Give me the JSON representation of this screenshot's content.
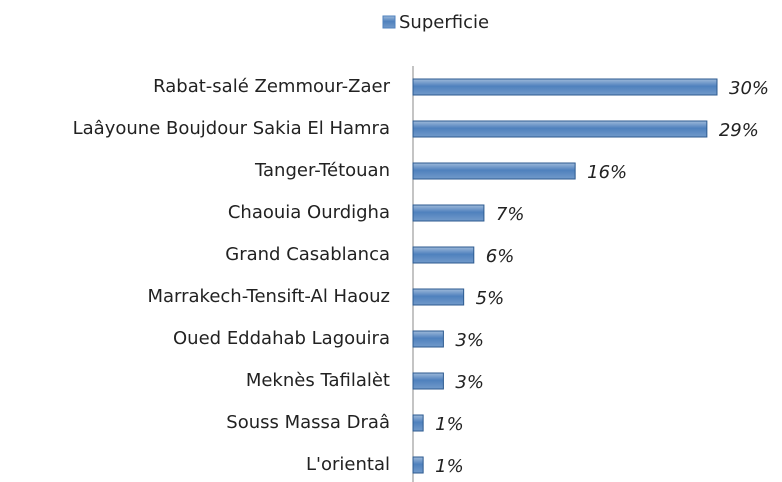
{
  "chart_data": {
    "type": "bar",
    "orientation": "horizontal",
    "categories": [
      "Rabat-salé Zemmour-Zaer",
      "Laâyoune Boujdour Sakia El Hamra",
      "Tanger-Tétouan",
      "Chaouia Ourdigha",
      "Grand Casablanca",
      "Marrakech-Tensift-Al Haouz",
      "Oued Eddahab Lagouira",
      "Meknès Tafilalèt",
      "Souss Massa Draâ",
      "L'oriental"
    ],
    "series": [
      {
        "name": "Superficie",
        "color": "#4f81bd",
        "values": [
          30,
          29,
          16,
          7,
          6,
          5,
          3,
          3,
          1,
          1
        ],
        "value_labels": [
          "30%",
          "29%",
          "16%",
          "7%",
          "6%",
          "5%",
          "3%",
          "3%",
          "1%",
          "1%"
        ]
      }
    ],
    "legend": "top"
  }
}
